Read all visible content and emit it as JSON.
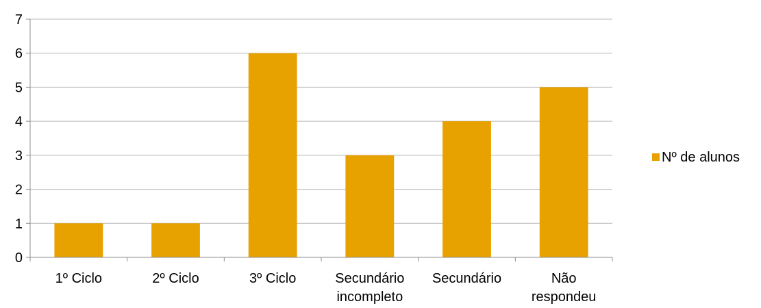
{
  "chart_data": {
    "type": "bar",
    "categories": [
      "1º Ciclo",
      "2º Ciclo",
      "3º Ciclo",
      "Secundário incompleto",
      "Secundário",
      "Não respondeu"
    ],
    "category_label_lines": [
      [
        "1º Ciclo"
      ],
      [
        "2º Ciclo"
      ],
      [
        "3º Ciclo"
      ],
      [
        "Secundário",
        "incompleto"
      ],
      [
        "Secundário"
      ],
      [
        "Não",
        "respondeu"
      ]
    ],
    "series": [
      {
        "name": "Nº de alunos",
        "values": [
          1,
          1,
          6,
          3,
          4,
          5
        ],
        "color": "#E8A200"
      }
    ],
    "ylim": [
      0,
      7
    ],
    "yticks": [
      0,
      1,
      2,
      3,
      4,
      5,
      6,
      7
    ],
    "grid": true,
    "legend": "right",
    "title": "",
    "xlabel": "",
    "ylabel": ""
  }
}
